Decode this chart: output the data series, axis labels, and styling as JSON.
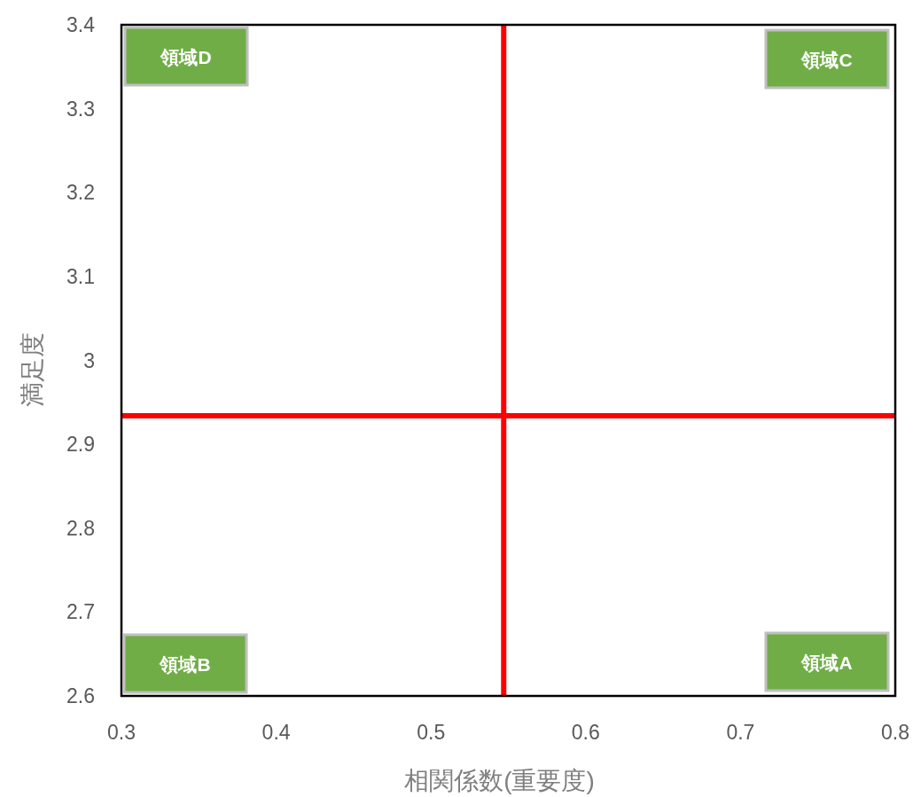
{
  "chart_data": {
    "type": "scatter",
    "xlabel": "相関係数(重要度)",
    "ylabel": "満足度",
    "xlim": [
      0.3,
      0.8
    ],
    "xticks": [
      0.3,
      0.4,
      0.5,
      0.6,
      0.7,
      0.8
    ],
    "ylim": [
      2.6,
      3.4
    ],
    "yticks": [
      2.6,
      2.7,
      2.8,
      2.9,
      3,
      3.1,
      3.2,
      3.3,
      3.4
    ],
    "grid": false,
    "ref_lines": [
      {
        "axis": "x",
        "value": 0.547,
        "label": null,
        "color": "#ff0000"
      },
      {
        "axis": "y",
        "value": 2.934,
        "label": null,
        "color": "#ff0000"
      }
    ],
    "annotations": [
      "領域D",
      "領域C",
      "領域B",
      "領域A"
    ]
  }
}
